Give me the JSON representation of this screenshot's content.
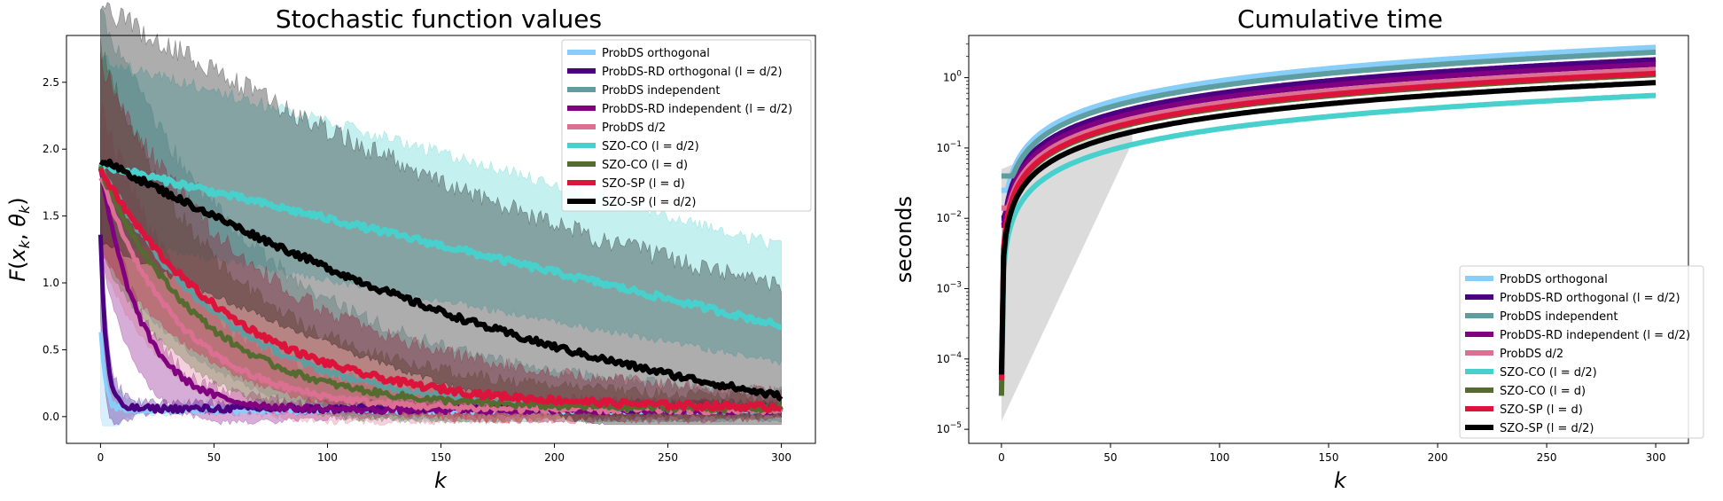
{
  "chart_data": [
    {
      "type": "line",
      "title": "Stochastic function values",
      "xlabel": "k",
      "ylabel": "F(x_k, θ_k)",
      "xlim": [
        -15,
        315
      ],
      "ylim": [
        -0.2,
        2.85
      ],
      "xticks": [
        0,
        50,
        100,
        150,
        200,
        250,
        300
      ],
      "yticks": [
        0.0,
        0.5,
        1.0,
        1.5,
        2.0,
        2.5
      ],
      "ytick_labels": [
        "0.0",
        "0.5",
        "1.0",
        "1.5",
        "2.0",
        "2.5"
      ],
      "y_scale": "linear",
      "grid": false,
      "legend_position": "top-right",
      "series": [
        {
          "name": "ProbDS orthogonal",
          "color": "#87CEFA",
          "line_width": 4,
          "start": 0.62,
          "end": 0.05,
          "tau": 2,
          "band_lo": 0.03,
          "band_hi": 0.9
        },
        {
          "name": "ProbDS-RD orthogonal (l = d/2)",
          "color": "#4B0082",
          "line_width": 5,
          "start": 1.36,
          "end": 0.06,
          "tau": 2.5,
          "band_lo": 0.03,
          "band_hi": 1.36
        },
        {
          "name": "ProbDS independent",
          "color": "#5F9EA0",
          "line_width": 5,
          "start": 1.88,
          "end": 0.04,
          "tau": 55,
          "band_lo": 0.06,
          "band_hi": 2.72
        },
        {
          "name": "ProbDS-RD independent (l = d/2)",
          "color": "#800080",
          "line_width": 5,
          "start": 1.85,
          "end": 0.05,
          "tau": 18,
          "band_lo": 0.0,
          "band_hi": 1.6
        },
        {
          "name": "ProbDS d/2",
          "color": "#DB7093",
          "line_width": 5,
          "start": 1.8,
          "end": 0.05,
          "tau": 35,
          "band_lo": 0.0,
          "band_hi": 2.0
        },
        {
          "name": "SZO-CO (l = d/2)",
          "color": "#48D1CC",
          "line_width": 6,
          "start": 1.88,
          "end": 0.68,
          "tau": 0,
          "band_lo": 0.15,
          "band_hi": 2.67
        },
        {
          "name": "SZO-CO (l = d)",
          "color": "#556B2F",
          "line_width": 5,
          "start": 1.85,
          "end": 0.06,
          "tau": 45,
          "band_lo": 0.02,
          "band_hi": 2.4
        },
        {
          "name": "SZO-SP (l = d)",
          "color": "#DC143C",
          "line_width": 6,
          "start": 1.85,
          "end": 0.06,
          "tau": 60,
          "band_lo": 0.02,
          "band_hi": 2.3
        },
        {
          "name": "SZO-SP (l = d/2)",
          "color": "#000000",
          "line_width": 6,
          "start": 1.92,
          "end": 0.15,
          "tau": 0,
          "band_lo": 0.04,
          "band_hi": 2.72
        }
      ]
    },
    {
      "type": "line",
      "title": "Cumulative time",
      "xlabel": "k",
      "ylabel": "seconds",
      "xlim": [
        -15,
        315
      ],
      "ylim_log10": [
        -5.2,
        0.6
      ],
      "xticks": [
        0,
        50,
        100,
        150,
        200,
        250,
        300
      ],
      "yticks_exponents": [
        -5,
        -4,
        -3,
        -2,
        -1,
        0
      ],
      "y_scale": "log",
      "grid": false,
      "legend_position": "bottom-right",
      "series": [
        {
          "name": "ProbDS orthogonal",
          "color": "#87CEFA",
          "line_width": 6,
          "t_at_300": 2.7,
          "t_at_0": 0.025
        },
        {
          "name": "ProbDS-RD orthogonal (l = d/2)",
          "color": "#4B0082",
          "line_width": 6,
          "t_at_300": 1.8,
          "t_at_0": 0.01
        },
        {
          "name": "ProbDS independent",
          "color": "#5F9EA0",
          "line_width": 6,
          "t_at_300": 2.3,
          "t_at_0": 0.04
        },
        {
          "name": "ProbDS-RD independent (l = d/2)",
          "color": "#800080",
          "line_width": 6,
          "t_at_300": 1.55,
          "t_at_0": 0.008
        },
        {
          "name": "ProbDS d/2",
          "color": "#DB7093",
          "line_width": 6,
          "t_at_300": 1.3,
          "t_at_0": 0.014
        },
        {
          "name": "SZO-CO (l = d/2)",
          "color": "#48D1CC",
          "line_width": 6,
          "t_at_300": 0.56,
          "t_at_0": 3e-05
        },
        {
          "name": "SZO-CO (l = d)",
          "color": "#556B2F",
          "line_width": 6,
          "t_at_300": 1.1,
          "t_at_0": 3e-05
        },
        {
          "name": "SZO-SP (l = d)",
          "color": "#DC143C",
          "line_width": 6,
          "t_at_300": 1.15,
          "t_at_0": 5e-05
        },
        {
          "name": "SZO-SP (l = d/2)",
          "color": "#000000",
          "line_width": 6,
          "t_at_300": 0.85,
          "t_at_0": 6e-05
        }
      ]
    }
  ]
}
